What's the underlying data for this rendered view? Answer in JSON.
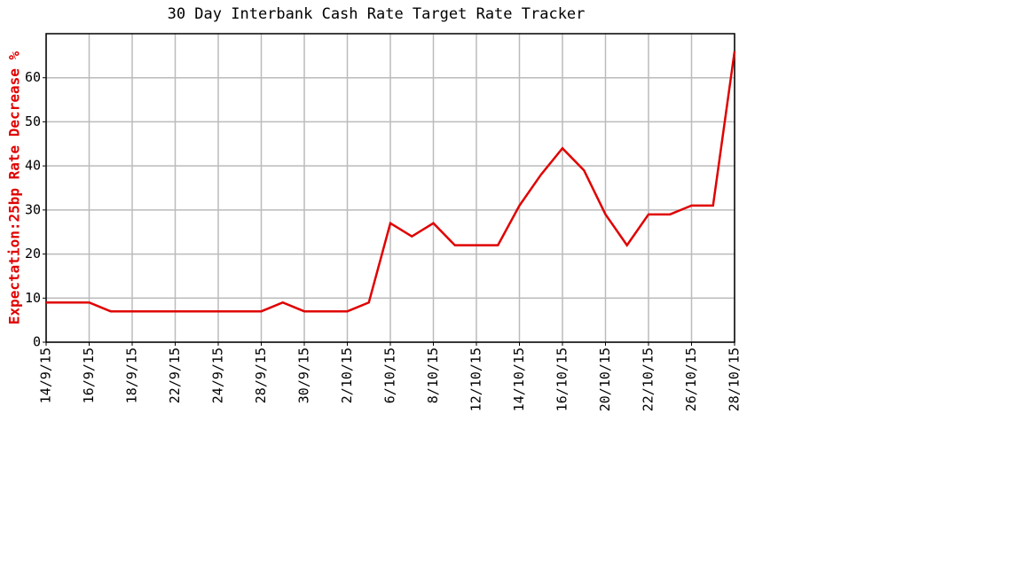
{
  "chart_data": {
    "type": "line",
    "title": "30 Day Interbank Cash Rate Target Rate Tracker",
    "y_label": "Expectation:25bp Rate Decrease %",
    "categories": [
      "14/9/15",
      null,
      "16/9/15",
      null,
      "18/9/15",
      null,
      "22/9/15",
      null,
      "24/9/15",
      null,
      "28/9/15",
      null,
      "30/9/15",
      null,
      "2/10/15",
      null,
      "6/10/15",
      null,
      "8/10/15",
      null,
      "12/10/15",
      null,
      "14/10/15",
      null,
      "16/10/15",
      null,
      "20/10/15",
      null,
      "22/10/15",
      null,
      "26/10/15",
      null,
      "28/10/15"
    ],
    "series": [
      {
        "color": "#e00000",
        "values": [
          9,
          9,
          9,
          7,
          7,
          7,
          7,
          7,
          7,
          7,
          7,
          9,
          7,
          7,
          7,
          9,
          27,
          24,
          27,
          22,
          22,
          22,
          31,
          38,
          44,
          39,
          29,
          22,
          29,
          29,
          31,
          31,
          66
        ]
      }
    ],
    "ylim": [
      0,
      70
    ],
    "yticks": [
      0,
      10,
      20,
      30,
      40,
      50,
      60
    ],
    "grid": true
  }
}
